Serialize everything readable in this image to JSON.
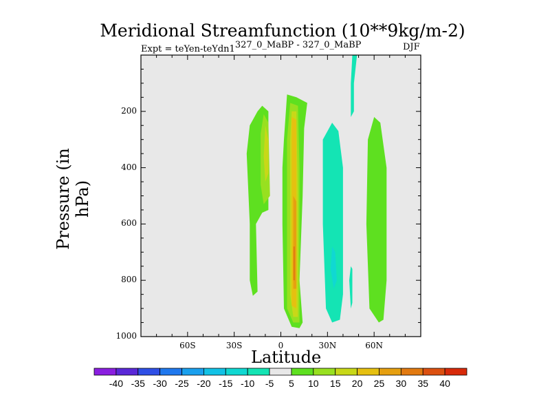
{
  "chart_data": {
    "type": "heatmap",
    "title": "Meridional Streamfunction (10**9kg/m-2)",
    "subtitle_left": "Expt = teYen-teYdn1",
    "subtitle_left_sup": "327_0_MaBP - 327_0_MaBP",
    "subtitle_right": "DJF",
    "xlabel": "Latitude",
    "ylabel": "Pressure (in hPa)",
    "xlim": [
      -90,
      90
    ],
    "ylim": [
      1000,
      0
    ],
    "x_ticks": [
      {
        "value": -60,
        "label": "60S"
      },
      {
        "value": -30,
        "label": "30S"
      },
      {
        "value": 0,
        "label": "0"
      },
      {
        "value": 30,
        "label": "30N"
      },
      {
        "value": 60,
        "label": "60N"
      }
    ],
    "y_ticks": [
      {
        "value": 200,
        "label": "200"
      },
      {
        "value": 400,
        "label": "400"
      },
      {
        "value": 600,
        "label": "600"
      },
      {
        "value": 800,
        "label": "800"
      },
      {
        "value": 1000,
        "label": "1000"
      }
    ],
    "colorbar": {
      "labels": [
        "-40",
        "-35",
        "-30",
        "-25",
        "-20",
        "-15",
        "-10",
        "-5",
        "5",
        "10",
        "15",
        "20",
        "25",
        "30",
        "35",
        "40"
      ],
      "colors": [
        "#8a1ee0",
        "#5a28d8",
        "#2f4fe6",
        "#1f78ee",
        "#1aa0ee",
        "#12c2e6",
        "#10d8d2",
        "#14e4b4",
        "#e8e8e8",
        "#5ee020",
        "#98e020",
        "#c8d818",
        "#e6c010",
        "#e6a010",
        "#e27a10",
        "#dc5010",
        "#d82a0a"
      ]
    },
    "contours": [
      {
        "name": "band-sh-subtropics",
        "level": 5,
        "color": "#5ee020",
        "polygon": [
          [
            -15,
            200
          ],
          [
            -12,
            180
          ],
          [
            -8,
            200
          ],
          [
            -8,
            550
          ],
          [
            -12,
            560
          ],
          [
            -16,
            600
          ],
          [
            -15,
            840
          ],
          [
            -18,
            855
          ],
          [
            -20,
            800
          ],
          [
            -20,
            600
          ],
          [
            -22,
            350
          ],
          [
            -20,
            250
          ]
        ]
      },
      {
        "name": "band-sh-inner",
        "level": 10,
        "color": "#98e020",
        "polygon": [
          [
            -11,
            210
          ],
          [
            -8,
            240
          ],
          [
            -7,
            500
          ],
          [
            -11,
            530
          ],
          [
            -13,
            460
          ],
          [
            -13,
            280
          ]
        ]
      },
      {
        "name": "band-sh-core",
        "level": 15,
        "color": "#c8d818",
        "polygon": [
          [
            -10,
            250
          ],
          [
            -8,
            300
          ],
          [
            -8,
            420
          ],
          [
            -10,
            450
          ],
          [
            -11,
            360
          ]
        ]
      },
      {
        "name": "band-eq-outer",
        "level": 5,
        "color": "#5ee020",
        "polygon": [
          [
            4,
            140
          ],
          [
            10,
            150
          ],
          [
            17,
            170
          ],
          [
            15,
            260
          ],
          [
            14,
            500
          ],
          [
            12,
            800
          ],
          [
            14,
            950
          ],
          [
            12,
            970
          ],
          [
            7,
            965
          ],
          [
            2,
            900
          ],
          [
            1,
            600
          ],
          [
            1,
            400
          ],
          [
            2,
            300
          ]
        ]
      },
      {
        "name": "band-eq-mid",
        "level": 10,
        "color": "#98e020",
        "polygon": [
          [
            6,
            170
          ],
          [
            11,
            180
          ],
          [
            12,
            400
          ],
          [
            12,
            800
          ],
          [
            12,
            950
          ],
          [
            8,
            950
          ],
          [
            4,
            900
          ],
          [
            4,
            500
          ],
          [
            4,
            300
          ]
        ]
      },
      {
        "name": "band-eq-inner",
        "level": 15,
        "color": "#c8d818",
        "polygon": [
          [
            7,
            200
          ],
          [
            10,
            200
          ],
          [
            11,
            500
          ],
          [
            11,
            800
          ],
          [
            11,
            930
          ],
          [
            8,
            930
          ],
          [
            6,
            850
          ],
          [
            6,
            300
          ]
        ]
      },
      {
        "name": "band-eq-core",
        "level": 20,
        "color": "#e6c010",
        "polygon": [
          [
            7,
            220
          ],
          [
            10,
            230
          ],
          [
            10,
            500
          ],
          [
            10,
            800
          ],
          [
            10,
            900
          ],
          [
            7,
            890
          ],
          [
            7,
            600
          ]
        ]
      },
      {
        "name": "band-eq-peak",
        "level": 25,
        "color": "#e6a010",
        "polygon": [
          [
            8,
            500
          ],
          [
            10,
            520
          ],
          [
            10,
            700
          ],
          [
            10,
            830
          ],
          [
            8,
            830
          ],
          [
            8,
            650
          ]
        ]
      },
      {
        "name": "band-eq-max",
        "level": 30,
        "color": "#e27a10",
        "polygon": [
          [
            8,
            680
          ],
          [
            9,
            680
          ],
          [
            9,
            800
          ],
          [
            8,
            800
          ]
        ]
      },
      {
        "name": "band-nh-negative",
        "level": -5,
        "color": "#14e4b4",
        "polygon": [
          [
            33,
            240
          ],
          [
            37,
            270
          ],
          [
            40,
            400
          ],
          [
            40,
            600
          ],
          [
            40,
            850
          ],
          [
            38,
            940
          ],
          [
            33,
            950
          ],
          [
            29,
            900
          ],
          [
            27,
            600
          ],
          [
            27,
            300
          ]
        ]
      },
      {
        "name": "band-nh-negative-inner",
        "level": -10,
        "color": "#10d8d2",
        "polygon": [
          [
            33,
            680
          ],
          [
            35,
            700
          ],
          [
            36,
            800
          ],
          [
            34,
            830
          ],
          [
            32,
            760
          ]
        ]
      },
      {
        "name": "band-nh-thin-top",
        "level": -5,
        "color": "#14e4b4",
        "polygon": [
          [
            46,
            0
          ],
          [
            49,
            0
          ],
          [
            47,
            100
          ],
          [
            47,
            200
          ],
          [
            45,
            220
          ],
          [
            45,
            100
          ]
        ]
      },
      {
        "name": "band-nh-thin-low",
        "level": -5,
        "color": "#14e4b4",
        "polygon": [
          [
            45,
            750
          ],
          [
            46,
            760
          ],
          [
            46,
            880
          ],
          [
            45,
            900
          ],
          [
            44,
            800
          ]
        ]
      },
      {
        "name": "band-nh-subtropics",
        "level": 5,
        "color": "#5ee020",
        "polygon": [
          [
            60,
            220
          ],
          [
            64,
            240
          ],
          [
            68,
            400
          ],
          [
            68,
            800
          ],
          [
            66,
            940
          ],
          [
            63,
            950
          ],
          [
            57,
            900
          ],
          [
            55,
            600
          ],
          [
            56,
            300
          ]
        ]
      }
    ]
  }
}
